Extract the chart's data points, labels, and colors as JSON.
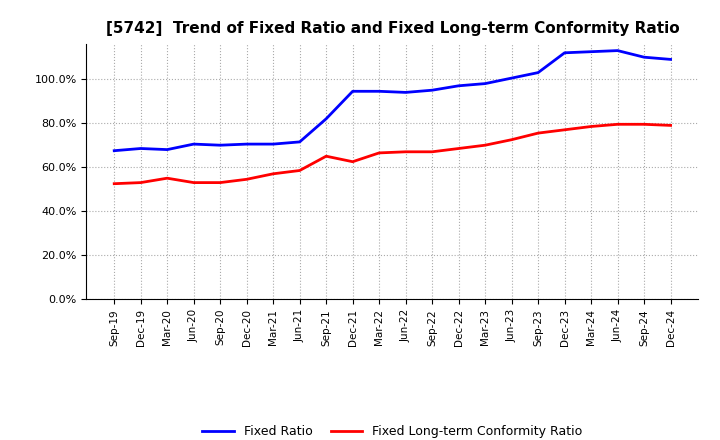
{
  "title": "[5742]  Trend of Fixed Ratio and Fixed Long-term Conformity Ratio",
  "x_labels": [
    "Sep-19",
    "Dec-19",
    "Mar-20",
    "Jun-20",
    "Sep-20",
    "Dec-20",
    "Mar-21",
    "Jun-21",
    "Sep-21",
    "Dec-21",
    "Mar-22",
    "Jun-22",
    "Sep-22",
    "Dec-22",
    "Mar-23",
    "Jun-23",
    "Sep-23",
    "Dec-23",
    "Mar-24",
    "Jun-24",
    "Sep-24",
    "Dec-24"
  ],
  "fixed_ratio": [
    67.5,
    68.5,
    68.0,
    70.5,
    70.0,
    70.5,
    70.5,
    71.5,
    82.0,
    94.5,
    94.5,
    94.0,
    95.0,
    97.0,
    98.0,
    100.5,
    103.0,
    112.0,
    112.5,
    113.0,
    110.0,
    109.0
  ],
  "fixed_lt_ratio": [
    52.5,
    53.0,
    55.0,
    53.0,
    53.0,
    54.5,
    57.0,
    58.5,
    65.0,
    62.5,
    66.5,
    67.0,
    67.0,
    68.5,
    70.0,
    72.5,
    75.5,
    77.0,
    78.5,
    79.5,
    79.5,
    79.0
  ],
  "fixed_ratio_color": "#0000ff",
  "fixed_lt_ratio_color": "#ff0000",
  "ylim": [
    0,
    116
  ],
  "yticks": [
    0,
    20,
    40,
    60,
    80,
    100
  ],
  "ytick_labels": [
    "0.0%",
    "20.0%",
    "40.0%",
    "60.0%",
    "80.0%",
    "100.0%"
  ],
  "background_color": "#ffffff",
  "plot_bg_color": "#ffffff",
  "grid_color": "#aaaaaa",
  "legend_fixed_ratio": "Fixed Ratio",
  "legend_fixed_lt_ratio": "Fixed Long-term Conformity Ratio",
  "line_width": 2.0
}
